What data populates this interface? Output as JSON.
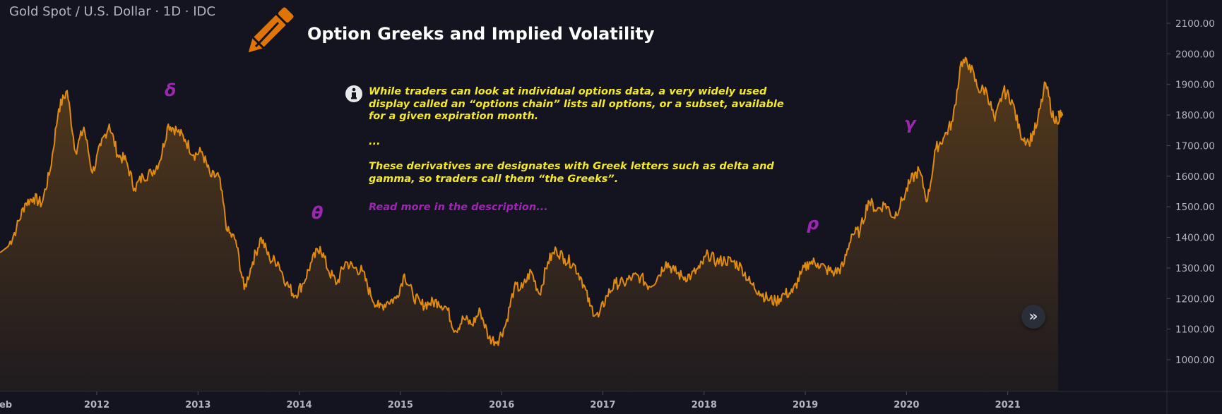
{
  "header": {
    "symbol": "Gold Spot / U.S. Dollar · 1D · IDC",
    "title": "Option Greeks and Implied Volatility"
  },
  "note": {
    "paragraph1": "While traders can look at individual options data, a very widely used display called an “options chain” lists all options, or a subset, available for a given expiration month.",
    "ellipsis": "...",
    "paragraph2": "These derivatives are designates with Greek letters such as delta and gamma, so traders call them “the Greeks”.",
    "read_more": "Read more in the description..."
  },
  "greeks": {
    "delta": "δ",
    "theta": "θ",
    "rho": "ρ",
    "gamma": "γ"
  },
  "icons": {
    "pencil": "pencil-icon",
    "info": "info-icon",
    "scroll": "double-chevron-right-icon"
  },
  "colors": {
    "background": "#131420",
    "line": "#e08a10",
    "note_text": "#f5e82a",
    "accent_purple": "#9c27b0",
    "axis_text": "#b2b5be"
  },
  "scroll_button": "»",
  "chart_data": {
    "type": "area",
    "title": "",
    "xlabel": "",
    "ylabel": "",
    "x_ticks": [
      "eb",
      "2012",
      "2013",
      "2014",
      "2015",
      "2016",
      "2017",
      "2018",
      "2019",
      "2020",
      "2021"
    ],
    "y_ticks": [
      "1000.00",
      "1100.00",
      "1200.00",
      "1300.00",
      "1400.00",
      "1500.00",
      "1600.00",
      "1700.00",
      "1800.00",
      "1900.00",
      "2000.00",
      "2100.00"
    ],
    "ylim": [
      950,
      2130
    ],
    "xlim": [
      "2011-01",
      "2021-08"
    ],
    "grid": false,
    "series": [
      {
        "x": [
          "2011-02",
          "2011-03",
          "2011-04",
          "2011-05",
          "2011-06",
          "2011-07",
          "2011-08",
          "2011-09",
          "2011-10",
          "2011-11",
          "2011-12",
          "2012-01",
          "2012-02",
          "2012-03",
          "2012-04",
          "2012-05",
          "2012-06",
          "2012-07",
          "2012-08",
          "2012-09",
          "2012-10",
          "2012-11",
          "2012-12",
          "2013-01",
          "2013-02",
          "2013-03",
          "2013-04",
          "2013-05",
          "2013-06",
          "2013-07",
          "2013-08",
          "2013-09",
          "2013-10",
          "2013-11",
          "2013-12",
          "2014-01",
          "2014-02",
          "2014-03",
          "2014-04",
          "2014-05",
          "2014-06",
          "2014-07",
          "2014-08",
          "2014-09",
          "2014-10",
          "2014-11",
          "2014-12",
          "2015-01",
          "2015-02",
          "2015-03",
          "2015-04",
          "2015-05",
          "2015-06",
          "2015-07",
          "2015-08",
          "2015-09",
          "2015-10",
          "2015-11",
          "2015-12",
          "2016-01",
          "2016-02",
          "2016-03",
          "2016-04",
          "2016-05",
          "2016-06",
          "2016-07",
          "2016-08",
          "2016-09",
          "2016-10",
          "2016-11",
          "2016-12",
          "2017-01",
          "2017-02",
          "2017-03",
          "2017-04",
          "2017-05",
          "2017-06",
          "2017-07",
          "2017-08",
          "2017-09",
          "2017-10",
          "2017-11",
          "2017-12",
          "2018-01",
          "2018-02",
          "2018-03",
          "2018-04",
          "2018-05",
          "2018-06",
          "2018-07",
          "2018-08",
          "2018-09",
          "2018-10",
          "2018-11",
          "2018-12",
          "2019-01",
          "2019-02",
          "2019-03",
          "2019-04",
          "2019-05",
          "2019-06",
          "2019-07",
          "2019-08",
          "2019-09",
          "2019-10",
          "2019-11",
          "2019-12",
          "2020-01",
          "2020-02",
          "2020-03",
          "2020-04",
          "2020-05",
          "2020-06",
          "2020-07",
          "2020-08",
          "2020-09",
          "2020-10",
          "2020-11",
          "2020-12",
          "2021-01",
          "2021-02",
          "2021-03",
          "2021-04",
          "2021-05",
          "2021-06",
          "2021-07"
        ],
        "y": [
          1370,
          1430,
          1510,
          1530,
          1510,
          1620,
          1820,
          1880,
          1680,
          1760,
          1610,
          1700,
          1770,
          1670,
          1650,
          1560,
          1600,
          1610,
          1650,
          1770,
          1750,
          1720,
          1670,
          1680,
          1600,
          1600,
          1420,
          1390,
          1230,
          1320,
          1400,
          1330,
          1320,
          1250,
          1210,
          1250,
          1320,
          1370,
          1290,
          1250,
          1320,
          1300,
          1290,
          1210,
          1170,
          1190,
          1200,
          1280,
          1210,
          1180,
          1185,
          1190,
          1170,
          1095,
          1135,
          1115,
          1160,
          1070,
          1060,
          1115,
          1235,
          1235,
          1290,
          1215,
          1320,
          1360,
          1330,
          1315,
          1265,
          1175,
          1140,
          1210,
          1250,
          1250,
          1270,
          1270,
          1240,
          1270,
          1320,
          1290,
          1270,
          1275,
          1300,
          1345,
          1320,
          1325,
          1320,
          1300,
          1250,
          1225,
          1200,
          1190,
          1215,
          1220,
          1280,
          1320,
          1315,
          1295,
          1285,
          1305,
          1410,
          1420,
          1520,
          1490,
          1510,
          1465,
          1520,
          1585,
          1620,
          1520,
          1690,
          1730,
          1780,
          1975,
          1965,
          1885,
          1880,
          1780,
          1880,
          1850,
          1740,
          1710,
          1770,
          1905,
          1780,
          1800
        ]
      }
    ]
  }
}
